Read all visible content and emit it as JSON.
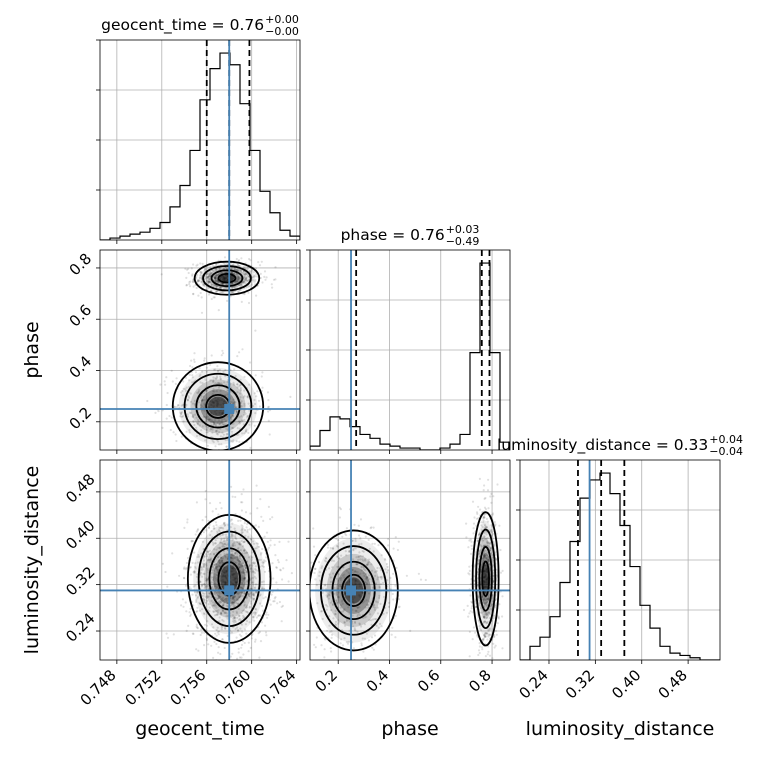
{
  "chart_data": {
    "type": "corner",
    "parameters": [
      "geocent_time",
      "phase",
      "luminosity_distance"
    ],
    "truths": {
      "geocent_time": 0.758,
      "phase": 0.25,
      "luminosity_distance": 0.31
    },
    "truth_color": "#4682b4",
    "grid": true,
    "titles": [
      {
        "param": "geocent_time",
        "prefix": "geocent_time = ",
        "median": "0.76",
        "plus": "+0.00",
        "minus": "−0.00"
      },
      {
        "param": "phase",
        "prefix": "phase = ",
        "median": "0.76",
        "plus": "+0.03",
        "minus": "−0.49"
      },
      {
        "param": "luminosity_distance",
        "prefix": "luminosity_distance = ",
        "median": "0.33",
        "plus": "+0.04",
        "minus": "−0.04"
      }
    ],
    "axes": {
      "geocent_time": {
        "label": "geocent_time",
        "range": [
          0.7465,
          0.7643
        ],
        "ticks": [
          "0.748",
          "0.752",
          "0.756",
          "0.760",
          "0.764"
        ],
        "tick_values": [
          0.748,
          0.752,
          0.756,
          0.76,
          0.764
        ]
      },
      "phase": {
        "label": "phase",
        "range": [
          0.09,
          0.87
        ],
        "ticks_x": [
          "0.2",
          "0.4",
          "0.6",
          "0.8"
        ],
        "ticks_y": [
          "0.2",
          "0.4",
          "0.6",
          "0.8"
        ],
        "tick_values": [
          0.2,
          0.4,
          0.6,
          0.8
        ]
      },
      "luminosity_distance": {
        "label": "luminosity_distance",
        "range": [
          0.19,
          0.535
        ],
        "ticks": [
          "0.24",
          "0.32",
          "0.40",
          "0.48"
        ],
        "tick_values": [
          0.24,
          0.32,
          0.4,
          0.48
        ]
      }
    },
    "histograms": {
      "geocent_time": {
        "bin_edges": [
          0.7465,
          0.74739,
          0.74828,
          0.74917,
          0.75006,
          0.75095,
          0.75184,
          0.75273,
          0.75362,
          0.75451,
          0.7554,
          0.75629,
          0.75718,
          0.75807,
          0.75896,
          0.75985,
          0.76074,
          0.76163,
          0.76252,
          0.76341,
          0.7643
        ],
        "counts": [
          0,
          1,
          2,
          3,
          4,
          6,
          9,
          17,
          28,
          46,
          72,
          88,
          96,
          90,
          70,
          46,
          25,
          14,
          5,
          2
        ],
        "quantiles": [
          0.756,
          0.758,
          0.7598
        ]
      },
      "phase": {
        "bin_edges": [
          0.09,
          0.129,
          0.168,
          0.207,
          0.246,
          0.285,
          0.324,
          0.363,
          0.402,
          0.441,
          0.48,
          0.519,
          0.558,
          0.597,
          0.636,
          0.675,
          0.714,
          0.753,
          0.792,
          0.831,
          0.87
        ],
        "counts": [
          2,
          10,
          17,
          16,
          12,
          8,
          6,
          3,
          2,
          1,
          1,
          0,
          0,
          1,
          3,
          8,
          50,
          96,
          50,
          4
        ],
        "quantiles": [
          0.27,
          0.76,
          0.79
        ]
      },
      "luminosity_distance": {
        "bin_edges": [
          0.19,
          0.20725,
          0.2245,
          0.24175,
          0.259,
          0.27625,
          0.2935,
          0.31075,
          0.328,
          0.34525,
          0.3625,
          0.37975,
          0.397,
          0.41425,
          0.4315,
          0.44875,
          0.466,
          0.48325,
          0.5005,
          0.51775,
          0.535
        ],
        "counts": [
          0,
          6,
          10,
          19,
          34,
          52,
          71,
          79,
          82,
          73,
          59,
          41,
          24,
          14,
          6,
          3,
          2,
          1,
          0,
          0
        ],
        "quantiles": [
          0.29,
          0.33,
          0.37
        ]
      }
    },
    "panels_2d": [
      {
        "x": "geocent_time",
        "y": "phase",
        "modes": [
          {
            "mean": [
              0.7578,
              0.76
            ],
            "sd": [
              0.00125,
              0.028
            ],
            "weight": 0.55
          },
          {
            "mean": [
              0.757,
              0.26
            ],
            "sd": [
              0.00175,
              0.075
            ],
            "weight": 0.45
          }
        ]
      },
      {
        "x": "geocent_time",
        "y": "luminosity_distance",
        "modes": [
          {
            "mean": [
              0.758,
              0.33
            ],
            "sd": [
              0.0016,
              0.048
            ],
            "weight": 1.0
          }
        ]
      },
      {
        "x": "phase",
        "y": "luminosity_distance",
        "modes": [
          {
            "mean": [
              0.775,
              0.33
            ],
            "sd": [
              0.022,
              0.05
            ],
            "weight": 0.6
          },
          {
            "mean": [
              0.26,
              0.31
            ],
            "sd": [
              0.075,
              0.045
            ],
            "weight": 0.4
          }
        ]
      }
    ]
  }
}
